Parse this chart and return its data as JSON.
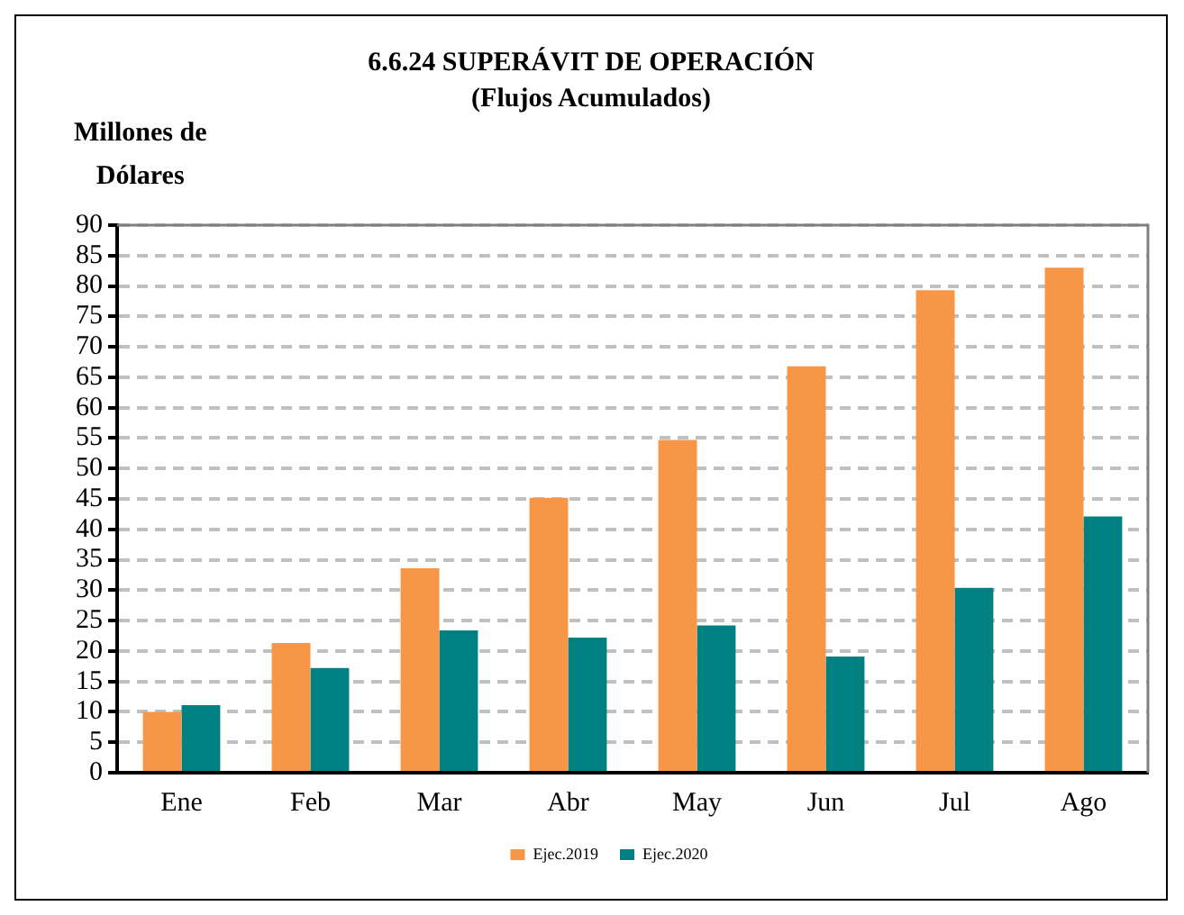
{
  "chart_data": {
    "type": "bar",
    "title": "6.6.24 SUPERÁVIT DE OPERACIÓN",
    "subtitle": "(Flujos Acumulados)",
    "ylabel": "Millones de Dólares",
    "categories": [
      "Ene",
      "Feb",
      "Mar",
      "Abr",
      "May",
      "Jun",
      "Jul",
      "Ago"
    ],
    "series": [
      {
        "name": "Ejec.2019",
        "color": "#f79646",
        "values": [
          10,
          21.3,
          33.6,
          45.2,
          54.7,
          66.8,
          79.3,
          83.0
        ]
      },
      {
        "name": "Ejec.2020",
        "color": "#008080",
        "values": [
          11.1,
          17.2,
          23.4,
          22.2,
          24.2,
          19.1,
          30.4,
          42.1
        ]
      }
    ],
    "ylim": [
      0,
      90
    ],
    "yticks": [
      0,
      5,
      10,
      15,
      20,
      25,
      30,
      35,
      40,
      45,
      50,
      55,
      60,
      65,
      70,
      75,
      80,
      85,
      90
    ],
    "grid": "y",
    "legend": "bottom"
  }
}
